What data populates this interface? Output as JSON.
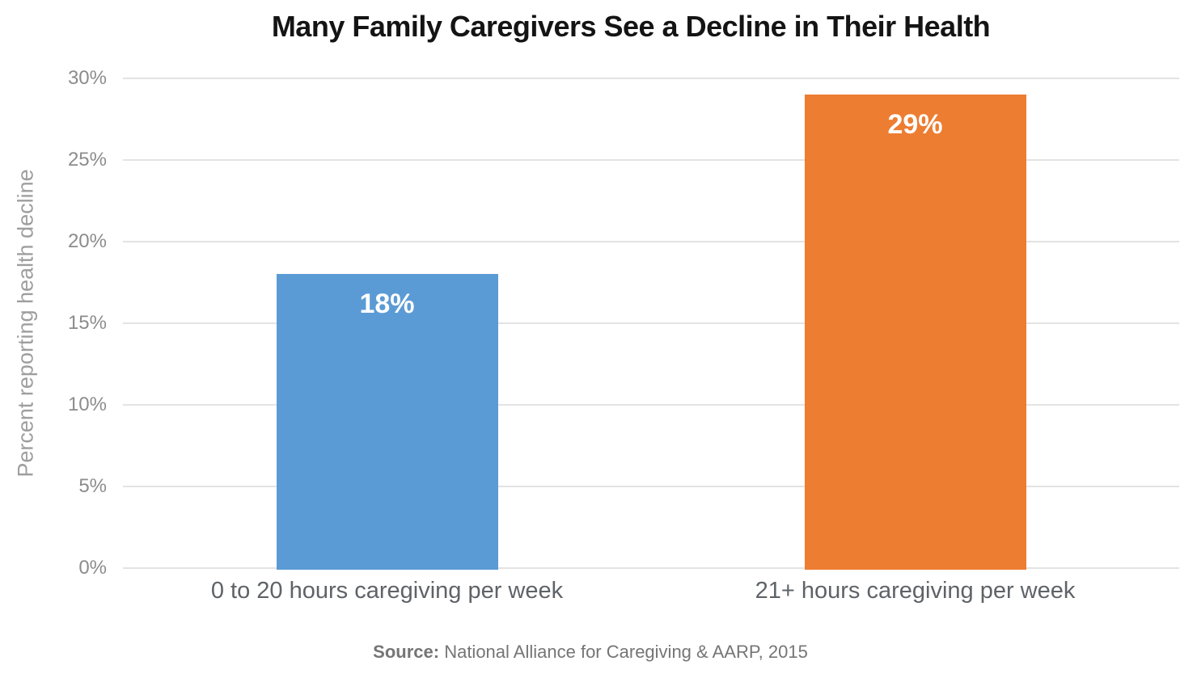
{
  "title": "Many Family Caregivers See a Decline in Their Health",
  "chart_data": {
    "type": "bar",
    "title": "Many Family Caregivers See a Decline in Their Health",
    "categories": [
      "0 to 20 hours caregiving per week",
      "21+ hours caregiving per week"
    ],
    "values": [
      18,
      29
    ],
    "bar_value_labels": [
      "18%",
      "29%"
    ],
    "bar_colors": [
      "#5B9BD5",
      "#ED7D31"
    ],
    "value_label_color": "#FFFFFF",
    "xlabel": "",
    "ylabel": "Percent reporting health decline",
    "ylim": [
      0,
      30
    ],
    "yticks": [
      0,
      5,
      10,
      15,
      20,
      25,
      30
    ],
    "ytick_labels": [
      "0%",
      "5%",
      "10%",
      "15%",
      "20%",
      "25%",
      "30%"
    ],
    "grid": "horizontal-only",
    "gridline_color": "#E3E3E3",
    "legend_position": "none"
  },
  "source": {
    "label": "Source:",
    "text": " National Alliance for Caregiving & AARP, 2015"
  }
}
